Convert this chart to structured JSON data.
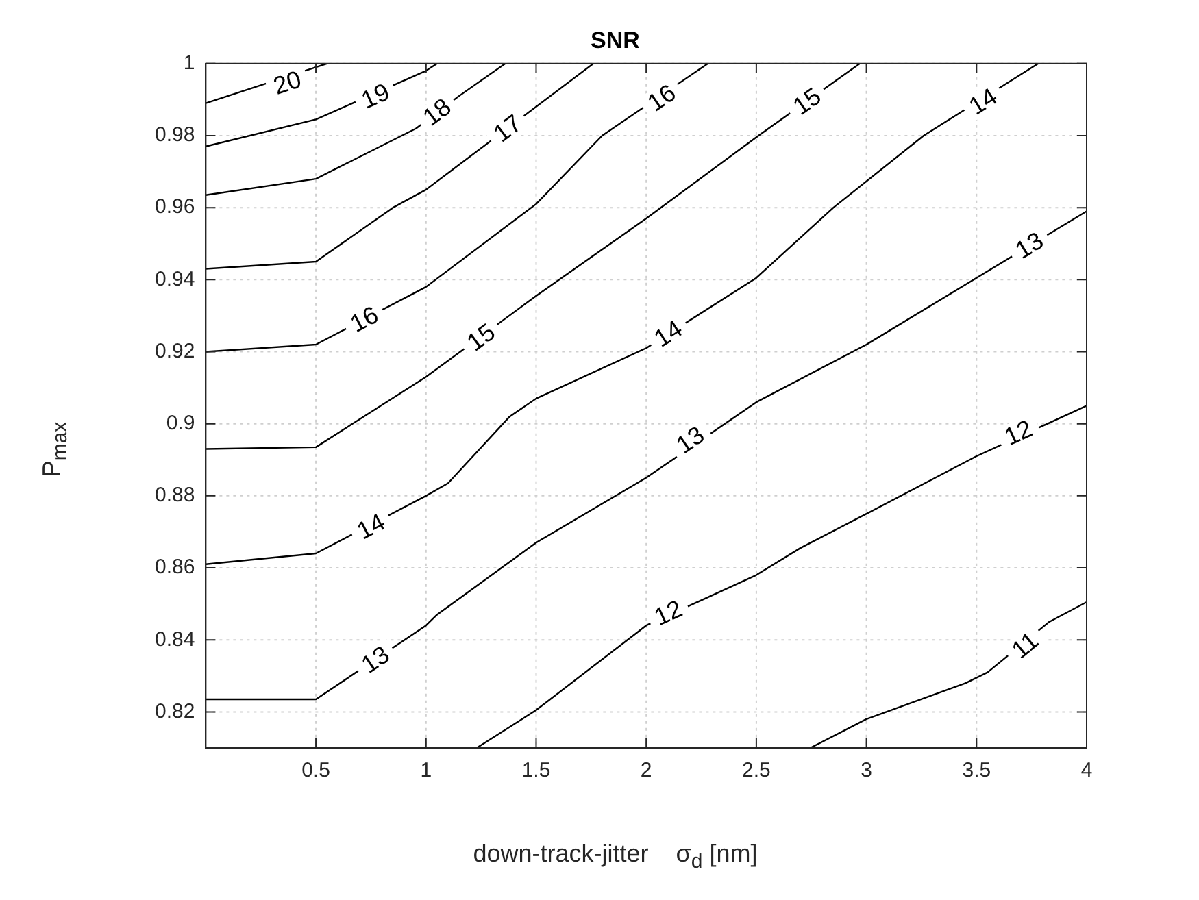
{
  "chart_data": {
    "type": "line",
    "title": "SNR",
    "xlabel": "down-track-jitter    σ$_{d}$ [nm]",
    "ylabel": "P$_{max}$",
    "xlim": [
      0,
      4
    ],
    "ylim": [
      0.81,
      1
    ],
    "xticks": [
      0.5,
      1,
      1.5,
      2,
      2.5,
      3,
      3.5,
      4
    ],
    "yticks": [
      0.82,
      0.84,
      0.86,
      0.88,
      0.9,
      0.92,
      0.94,
      0.96,
      0.98,
      1
    ],
    "grid": true,
    "legend": false,
    "marker": "none",
    "line_style": "solid",
    "series": [
      {
        "color": "#000000",
        "x": [
          0,
          0.5,
          0.55
        ],
        "values": [
          0.989,
          0.999,
          1
        ]
      },
      {
        "color": "#000000",
        "x": [
          0,
          0.5,
          1,
          1.05
        ],
        "values": [
          0.977,
          0.9845,
          0.998,
          1
        ]
      },
      {
        "color": "#000000",
        "x": [
          0,
          0.5,
          0.955,
          1.15,
          1.36
        ],
        "values": [
          0.9635,
          0.968,
          0.982,
          0.991,
          1
        ]
      },
      {
        "color": "#000000",
        "x": [
          0,
          0.5,
          0.85,
          1,
          1.76
        ],
        "values": [
          0.943,
          0.945,
          0.96,
          0.965,
          1
        ]
      },
      {
        "color": "#000000",
        "x": [
          0,
          0.5,
          1,
          1.5,
          1.8,
          2.28
        ],
        "values": [
          0.92,
          0.922,
          0.938,
          0.961,
          0.98,
          1
        ]
      },
      {
        "color": "#000000",
        "x": [
          0,
          0.5,
          1,
          1.5,
          2,
          2.51,
          2.97
        ],
        "values": [
          0.893,
          0.8935,
          0.913,
          0.9355,
          0.957,
          0.98,
          1
        ]
      },
      {
        "color": "#000000",
        "x": [
          0,
          0.5,
          1,
          1.1,
          1.38,
          1.5,
          2,
          2.5,
          2.85,
          3.26,
          3.78
        ],
        "values": [
          0.861,
          0.864,
          0.88,
          0.8835,
          0.902,
          0.907,
          0.921,
          0.9405,
          0.96,
          0.98,
          1
        ]
      },
      {
        "color": "#000000",
        "x": [
          0,
          0.5,
          1,
          1.05,
          1.5,
          2,
          2.5,
          3,
          3.5,
          4
        ],
        "values": [
          0.8235,
          0.8235,
          0.844,
          0.847,
          0.867,
          0.885,
          0.906,
          0.922,
          0.9405,
          0.959
        ]
      },
      {
        "color": "#000000",
        "x": [
          1.23,
          1.5,
          2,
          2.5,
          2.7,
          3,
          3.5,
          4
        ],
        "values": [
          0.81,
          0.8205,
          0.844,
          0.858,
          0.8655,
          0.875,
          0.891,
          0.905
        ]
      },
      {
        "color": "#000000",
        "x": [
          2.745,
          3,
          3.45,
          3.55,
          3.83,
          4
        ],
        "values": [
          0.81,
          0.818,
          0.828,
          0.831,
          0.845,
          0.8505
        ]
      }
    ],
    "annotations": [
      {
        "text": "20",
        "x": 0.37,
        "y": 0.9947
      },
      {
        "text": "19",
        "x": 0.77,
        "y": 0.991
      },
      {
        "text": "18",
        "x": 1.05,
        "y": 0.9865
      },
      {
        "text": "17",
        "x": 1.37,
        "y": 0.982
      },
      {
        "text": "16",
        "x": 0.72,
        "y": 0.929
      },
      {
        "text": "16",
        "x": 2.07,
        "y": 0.9905
      },
      {
        "text": "15",
        "x": 1.25,
        "y": 0.924
      },
      {
        "text": "15",
        "x": 2.73,
        "y": 0.9895
      },
      {
        "text": "14",
        "x": 0.75,
        "y": 0.8715
      },
      {
        "text": "14",
        "x": 2.1,
        "y": 0.925
      },
      {
        "text": "14",
        "x": 3.53,
        "y": 0.9895
      },
      {
        "text": "13",
        "x": 0.77,
        "y": 0.8345
      },
      {
        "text": "13",
        "x": 2.2,
        "y": 0.8955
      },
      {
        "text": "13",
        "x": 3.74,
        "y": 0.9495
      },
      {
        "text": "12",
        "x": 2.1,
        "y": 0.8475
      },
      {
        "text": "12",
        "x": 3.69,
        "y": 0.8975
      },
      {
        "text": "11",
        "x": 3.72,
        "y": 0.8385
      }
    ]
  }
}
